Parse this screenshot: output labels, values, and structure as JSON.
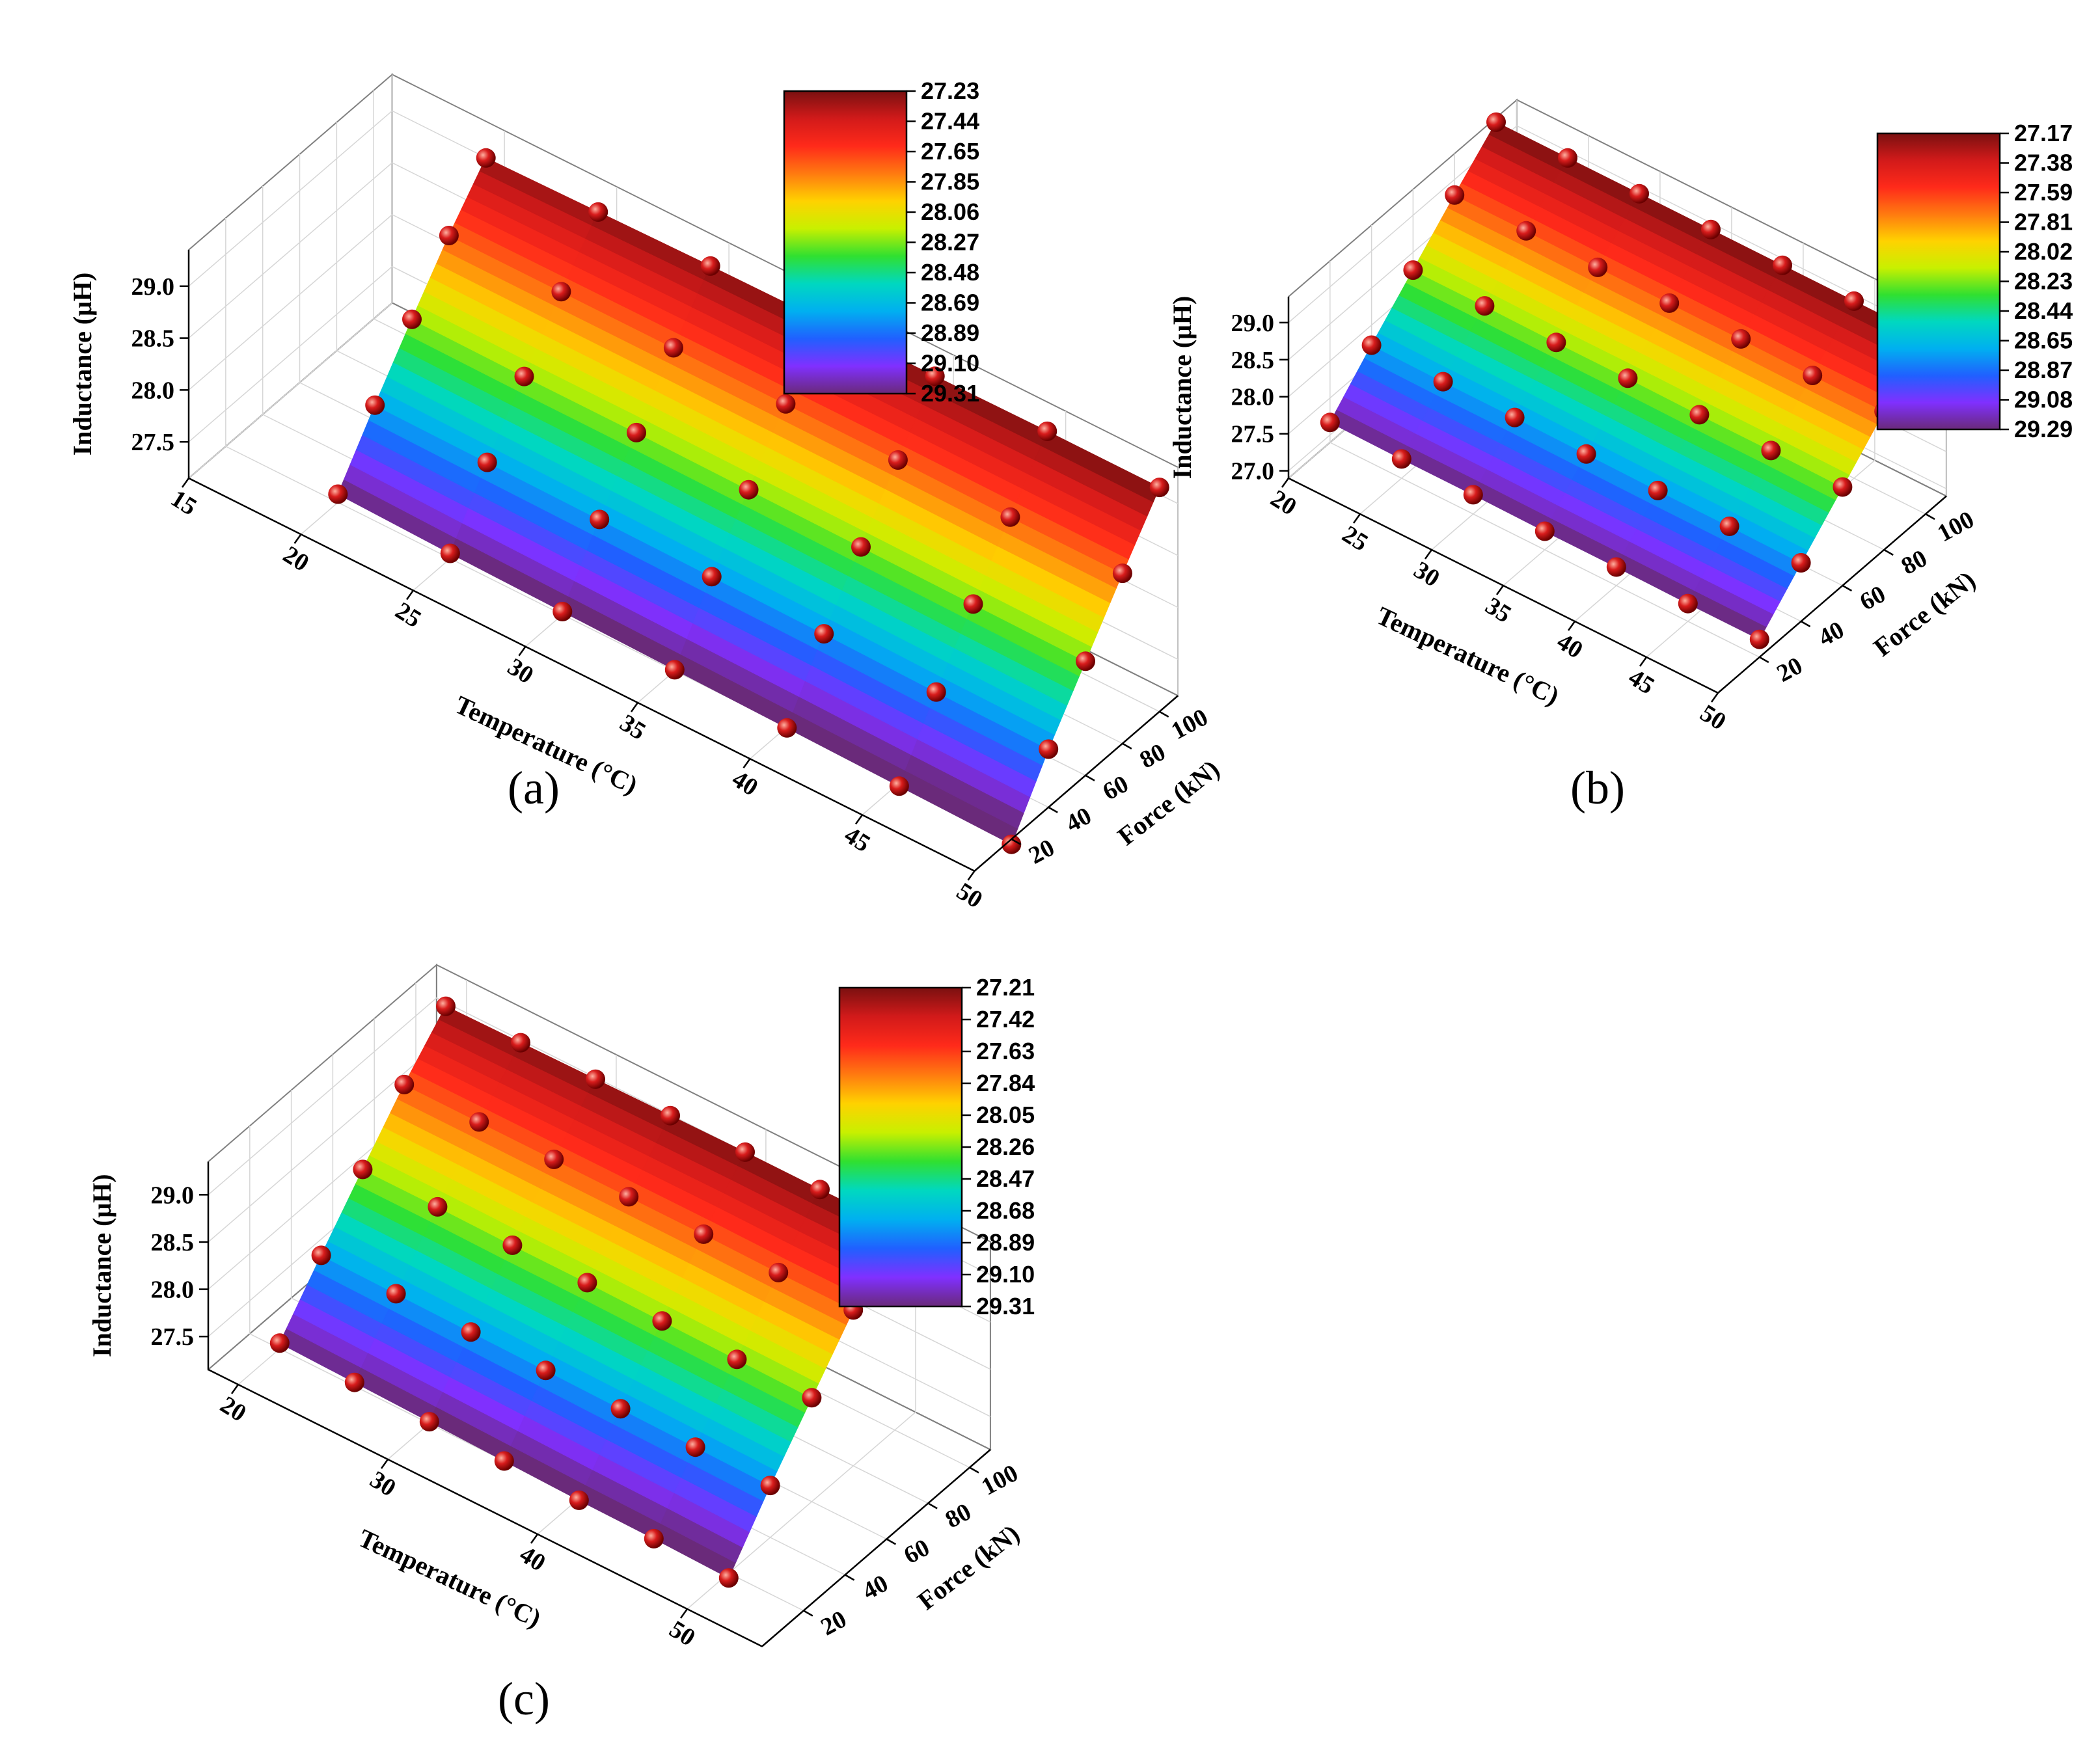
{
  "colors": {
    "grid": "#d6d6d6",
    "box": "#808080",
    "marker": "#d81c1c",
    "colormap": [
      "#7a1010",
      "#d21a1a",
      "#ff2a1a",
      "#ff7a10",
      "#ffd200",
      "#c8f000",
      "#30e030",
      "#00d8c0",
      "#00b0f0",
      "#2060ff",
      "#8030ff",
      "#6a2a7a"
    ]
  },
  "chart_data": [
    {
      "panel": "(a)",
      "type": "surface3d",
      "xlabel": "Temperature (°C)",
      "ylabel": "Force (kN)",
      "zlabel": "Inductance  (μH)",
      "xticks": [
        "15",
        "20",
        "25",
        "30",
        "35",
        "40",
        "45",
        "50"
      ],
      "xticks_values": [
        15,
        20,
        25,
        30,
        35,
        40,
        45,
        50
      ],
      "yticks": [
        "20",
        "40",
        "60",
        "80",
        "100"
      ],
      "yticks_values": [
        20,
        40,
        60,
        80,
        100
      ],
      "zticks": [
        "27.5",
        "28.0",
        "28.5",
        "29.0"
      ],
      "zticks_values": [
        27.5,
        28.0,
        28.5,
        29.0
      ],
      "xlim": [
        15,
        50
      ],
      "ylim": [
        0,
        110
      ],
      "zlim": [
        27.15,
        29.35
      ],
      "temperatures": [
        20,
        25,
        30,
        35,
        40,
        45,
        50
      ],
      "forces": [
        20,
        40,
        60,
        80,
        100
      ],
      "z": [
        [
          27.23,
          27.2,
          27.18,
          27.16,
          27.14,
          27.12,
          27.1
        ],
        [
          27.78,
          27.77,
          27.76,
          27.75,
          27.74,
          27.72,
          27.71
        ],
        [
          28.3,
          28.29,
          28.29,
          28.28,
          28.27,
          28.26,
          28.25
        ],
        [
          28.8,
          28.8,
          28.8,
          28.8,
          28.8,
          28.79,
          28.79
        ],
        [
          29.24,
          29.26,
          29.28,
          29.29,
          29.3,
          29.31,
          29.31
        ]
      ],
      "colorbar": [
        "27.23",
        "27.44",
        "27.65",
        "27.85",
        "28.06",
        "28.27",
        "28.48",
        "28.69",
        "28.89",
        "29.10",
        "29.31"
      ]
    },
    {
      "panel": "(b)",
      "type": "surface3d",
      "xlabel": "Temperature (°C)",
      "ylabel": "Force (kN)",
      "zlabel": "Inductance  (μH)",
      "xticks": [
        "20",
        "25",
        "30",
        "35",
        "40",
        "45",
        "50"
      ],
      "xticks_values": [
        20,
        25,
        30,
        35,
        40,
        45,
        50
      ],
      "yticks": [
        "20",
        "40",
        "60",
        "80",
        "100"
      ],
      "yticks_values": [
        20,
        40,
        60,
        80,
        100
      ],
      "zticks": [
        "27.0",
        "27.5",
        "28.0",
        "28.5",
        "29.0"
      ],
      "zticks_values": [
        27.0,
        27.5,
        28.0,
        28.5,
        29.0
      ],
      "xlim": [
        20,
        50
      ],
      "ylim": [
        0,
        110
      ],
      "zlim": [
        26.9,
        29.35
      ],
      "temperatures": [
        20,
        25,
        30,
        35,
        40,
        45,
        50
      ],
      "forces": [
        20,
        40,
        60,
        80,
        100
      ],
      "z": [
        [
          27.17,
          27.16,
          27.16,
          27.15,
          27.15,
          27.14,
          27.14
        ],
        [
          27.73,
          27.72,
          27.72,
          27.71,
          27.7,
          27.7,
          27.69
        ],
        [
          28.26,
          28.26,
          28.25,
          28.25,
          28.24,
          28.24,
          28.23
        ],
        [
          28.79,
          28.79,
          28.78,
          28.78,
          28.78,
          28.77,
          28.77
        ],
        [
          29.29,
          29.29,
          29.29,
          29.29,
          29.29,
          29.29,
          29.29
        ]
      ],
      "colorbar": [
        "27.17",
        "27.38",
        "27.59",
        "27.81",
        "28.02",
        "28.23",
        "28.44",
        "28.65",
        "28.87",
        "29.08",
        "29.29"
      ]
    },
    {
      "panel": "(c)",
      "type": "surface3d",
      "xlabel": "Temperature (°C)",
      "ylabel": "Force (kN)",
      "zlabel": "Inductance  (μH)",
      "xticks": [
        "20",
        "30",
        "40",
        "50"
      ],
      "xticks_values": [
        20,
        30,
        40,
        50
      ],
      "yticks": [
        "20",
        "40",
        "60",
        "80",
        "100"
      ],
      "yticks_values": [
        20,
        40,
        60,
        80,
        100
      ],
      "zticks": [
        "27.5",
        "28.0",
        "28.5",
        "29.0"
      ],
      "zticks_values": [
        27.5,
        28.0,
        28.5,
        29.0
      ],
      "xlim": [
        18,
        55
      ],
      "ylim": [
        0,
        110
      ],
      "zlim": [
        27.15,
        29.35
      ],
      "temperatures": [
        20,
        25,
        30,
        35,
        40,
        45,
        50
      ],
      "forces": [
        20,
        40,
        60,
        80,
        100
      ],
      "z": [
        [
          27.21,
          27.19,
          27.17,
          27.15,
          27.13,
          27.12,
          27.1
        ],
        [
          27.76,
          27.75,
          27.74,
          27.73,
          27.72,
          27.71,
          27.7
        ],
        [
          28.29,
          28.29,
          28.28,
          28.28,
          28.27,
          28.26,
          28.25
        ],
        [
          28.81,
          28.81,
          28.81,
          28.81,
          28.81,
          28.8,
          28.8
        ],
        [
          29.26,
          29.27,
          29.28,
          29.29,
          29.3,
          29.3,
          29.31
        ]
      ],
      "colorbar": [
        "27.21",
        "27.42",
        "27.63",
        "27.84",
        "28.05",
        "28.26",
        "28.47",
        "28.68",
        "28.89",
        "29.10",
        "29.31"
      ]
    }
  ]
}
